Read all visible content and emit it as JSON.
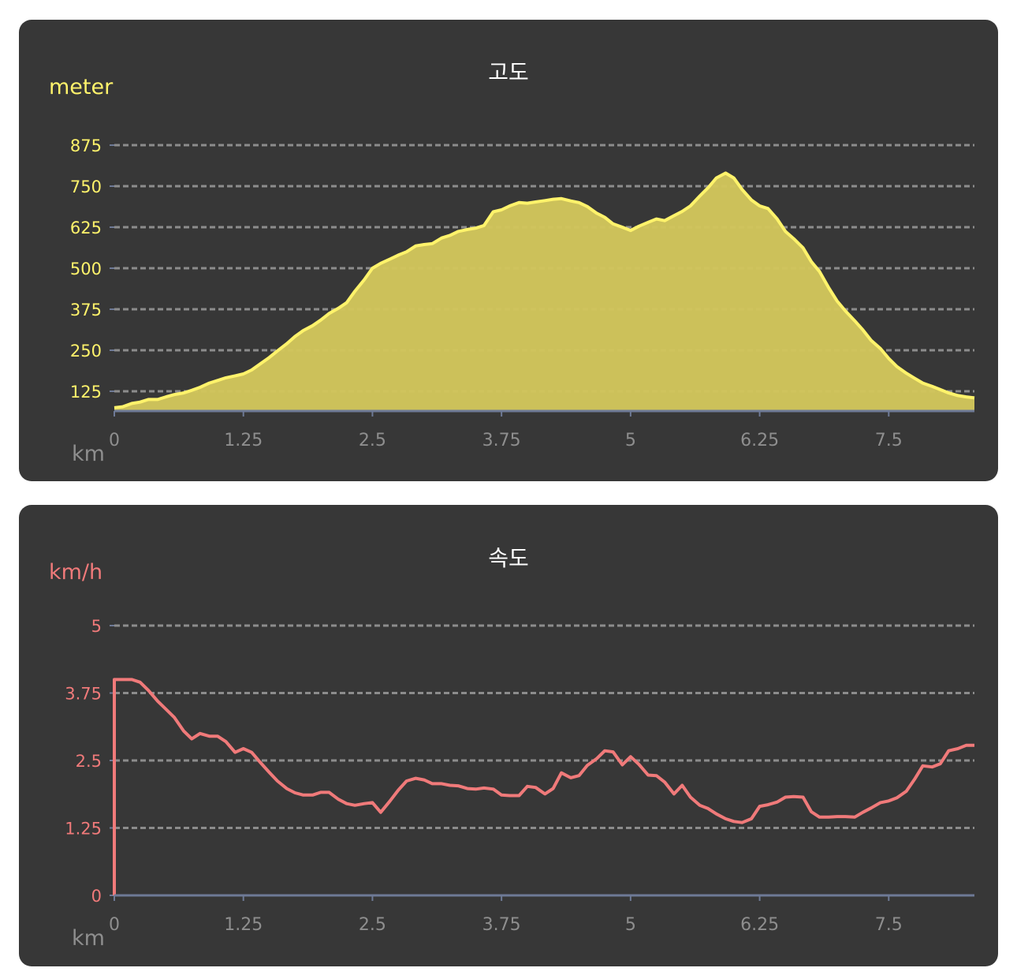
{
  "colors": {
    "background": "#373737",
    "elevation": "#FFF36B",
    "elevation_fill": "#D2C65C",
    "speed": "#F07A7A",
    "axis_line": "#6E7A96",
    "grid": "#8C8C8C",
    "axis_text": "#8E8E8E",
    "title_text": "#FFFFFF"
  },
  "chart_data": [
    {
      "type": "area",
      "title": "고도",
      "ylabel": "meter",
      "xlabel": "km",
      "xlim": [
        0,
        8.33
      ],
      "ylim": [
        90,
        875
      ],
      "x_ticks": [
        "0",
        "1.25",
        "2.5",
        "3.75",
        "5",
        "6.25",
        "7.5"
      ],
      "y_ticks": [
        "125",
        "250",
        "375",
        "500",
        "625",
        "750",
        "875"
      ],
      "grid": true,
      "x": [
        0,
        0.08,
        0.17,
        0.25,
        0.33,
        0.42,
        0.5,
        0.58,
        0.67,
        0.75,
        0.83,
        0.92,
        1.0,
        1.08,
        1.17,
        1.25,
        1.33,
        1.42,
        1.5,
        1.58,
        1.67,
        1.75,
        1.83,
        1.92,
        2.0,
        2.08,
        2.17,
        2.25,
        2.33,
        2.42,
        2.5,
        2.58,
        2.67,
        2.75,
        2.83,
        2.92,
        3.0,
        3.08,
        3.17,
        3.25,
        3.33,
        3.42,
        3.5,
        3.58,
        3.67,
        3.75,
        3.83,
        3.92,
        4.0,
        4.08,
        4.17,
        4.25,
        4.33,
        4.42,
        4.5,
        4.58,
        4.67,
        4.75,
        4.83,
        4.92,
        5.0,
        5.08,
        5.17,
        5.25,
        5.33,
        5.42,
        5.5,
        5.58,
        5.67,
        5.75,
        5.83,
        5.92,
        6.0,
        6.08,
        6.17,
        6.25,
        6.33,
        6.42,
        6.5,
        6.58,
        6.67,
        6.75,
        6.83,
        6.92,
        7.0,
        7.08,
        7.17,
        7.25,
        7.33,
        7.42,
        7.5,
        7.58,
        7.67,
        7.75,
        7.83,
        7.92,
        8.0,
        8.08,
        8.17,
        8.25,
        8.33
      ],
      "values": [
        75,
        78,
        88,
        92,
        100,
        100,
        108,
        115,
        120,
        128,
        137,
        150,
        158,
        166,
        172,
        178,
        190,
        210,
        228,
        248,
        270,
        292,
        310,
        325,
        342,
        362,
        378,
        395,
        430,
        465,
        500,
        515,
        528,
        540,
        550,
        568,
        572,
        575,
        592,
        600,
        612,
        618,
        622,
        630,
        672,
        678,
        690,
        700,
        698,
        702,
        706,
        710,
        712,
        705,
        700,
        688,
        668,
        655,
        635,
        625,
        615,
        628,
        640,
        650,
        645,
        660,
        673,
        690,
        720,
        745,
        775,
        790,
        775,
        740,
        708,
        690,
        682,
        650,
        612,
        590,
        562,
        520,
        490,
        440,
        400,
        370,
        340,
        312,
        280,
        255,
        225,
        200,
        180,
        165,
        150,
        140,
        130,
        120,
        112,
        108,
        105
      ]
    },
    {
      "type": "line",
      "title": "속도",
      "ylabel": "km/h",
      "xlabel": "km",
      "xlim": [
        0,
        8.33
      ],
      "ylim": [
        0,
        5
      ],
      "x_ticks": [
        "0",
        "1.25",
        "2.5",
        "3.75",
        "5",
        "6.25",
        "7.5"
      ],
      "y_ticks": [
        "0",
        "1.25",
        "2.5",
        "3.75",
        "5"
      ],
      "grid": true,
      "x": [
        0,
        0.08,
        0.17,
        0.25,
        0.33,
        0.42,
        0.5,
        0.58,
        0.67,
        0.75,
        0.83,
        0.92,
        1.0,
        1.08,
        1.17,
        1.25,
        1.33,
        1.42,
        1.5,
        1.58,
        1.67,
        1.75,
        1.83,
        1.92,
        2.0,
        2.08,
        2.17,
        2.25,
        2.33,
        2.42,
        2.5,
        2.58,
        2.67,
        2.75,
        2.83,
        2.92,
        3.0,
        3.08,
        3.17,
        3.25,
        3.33,
        3.42,
        3.5,
        3.58,
        3.67,
        3.75,
        3.83,
        3.92,
        4.0,
        4.08,
        4.17,
        4.25,
        4.33,
        4.42,
        4.5,
        4.58,
        4.67,
        4.75,
        4.83,
        4.92,
        5.0,
        5.08,
        5.17,
        5.25,
        5.33,
        5.42,
        5.5,
        5.58,
        5.67,
        5.75,
        5.83,
        5.92,
        6.0,
        6.08,
        6.17,
        6.25,
        6.33,
        6.42,
        6.5,
        6.58,
        6.67,
        6.75,
        6.83,
        6.92,
        7.0,
        7.08,
        7.17,
        7.25,
        7.33,
        7.42,
        7.5,
        7.58,
        7.67,
        7.75,
        7.83,
        7.92,
        8.0,
        8.08,
        8.17,
        8.25,
        8.33
      ],
      "values": [
        4.0,
        4.0,
        4.0,
        3.95,
        3.8,
        3.6,
        3.45,
        3.3,
        3.05,
        2.9,
        3.0,
        2.95,
        2.95,
        2.85,
        2.65,
        2.72,
        2.65,
        2.45,
        2.28,
        2.12,
        1.98,
        1.9,
        1.86,
        1.86,
        1.91,
        1.91,
        1.78,
        1.7,
        1.67,
        1.7,
        1.72,
        1.54,
        1.75,
        1.95,
        2.12,
        2.17,
        2.14,
        2.07,
        2.07,
        2.04,
        2.03,
        1.98,
        1.97,
        1.99,
        1.97,
        1.86,
        1.85,
        1.85,
        2.02,
        2.0,
        1.88,
        1.98,
        2.27,
        2.18,
        2.22,
        2.41,
        2.53,
        2.68,
        2.66,
        2.42,
        2.57,
        2.43,
        2.23,
        2.22,
        2.1,
        1.88,
        2.04,
        1.82,
        1.67,
        1.61,
        1.51,
        1.42,
        1.37,
        1.35,
        1.42,
        1.65,
        1.68,
        1.73,
        1.82,
        1.83,
        1.82,
        1.55,
        1.45,
        1.45,
        1.46,
        1.46,
        1.45,
        1.54,
        1.62,
        1.72,
        1.75,
        1.81,
        1.93,
        2.15,
        2.4,
        2.38,
        2.44,
        2.68,
        2.72,
        2.78,
        2.78
      ]
    }
  ]
}
